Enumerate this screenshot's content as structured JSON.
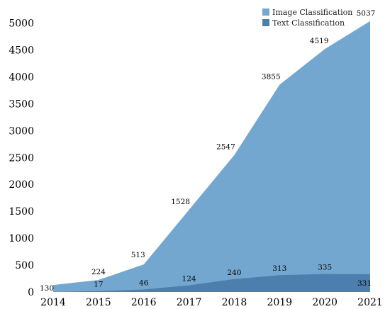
{
  "chart_data": {
    "type": "area",
    "categories": [
      "2014",
      "2015",
      "2016",
      "2017",
      "2018",
      "2019",
      "2020",
      "2021"
    ],
    "series": [
      {
        "name": "Image Classification",
        "values": [
          130,
          224,
          513,
          1528,
          2547,
          3855,
          4519,
          5037
        ],
        "color": "#74a7cf"
      },
      {
        "name": "Text Classification",
        "values": [
          0,
          17,
          46,
          124,
          240,
          313,
          335,
          331
        ],
        "color": "#4d7fae"
      }
    ],
    "data_labels": {
      "Image Classification": [
        "130",
        "224",
        "513",
        "1528",
        "2547",
        "3855",
        "4519",
        "5037"
      ],
      "Text Classification": [
        "",
        "17",
        "46",
        "124",
        "240",
        "313",
        "335",
        "331"
      ]
    },
    "ylim": [
      0,
      5000
    ],
    "yticks": [
      0,
      500,
      1000,
      1500,
      2000,
      2500,
      3000,
      3500,
      4000,
      4500,
      5000
    ],
    "title": "",
    "xlabel": "",
    "ylabel": "",
    "legend_position": "top-right",
    "grid": false
  }
}
